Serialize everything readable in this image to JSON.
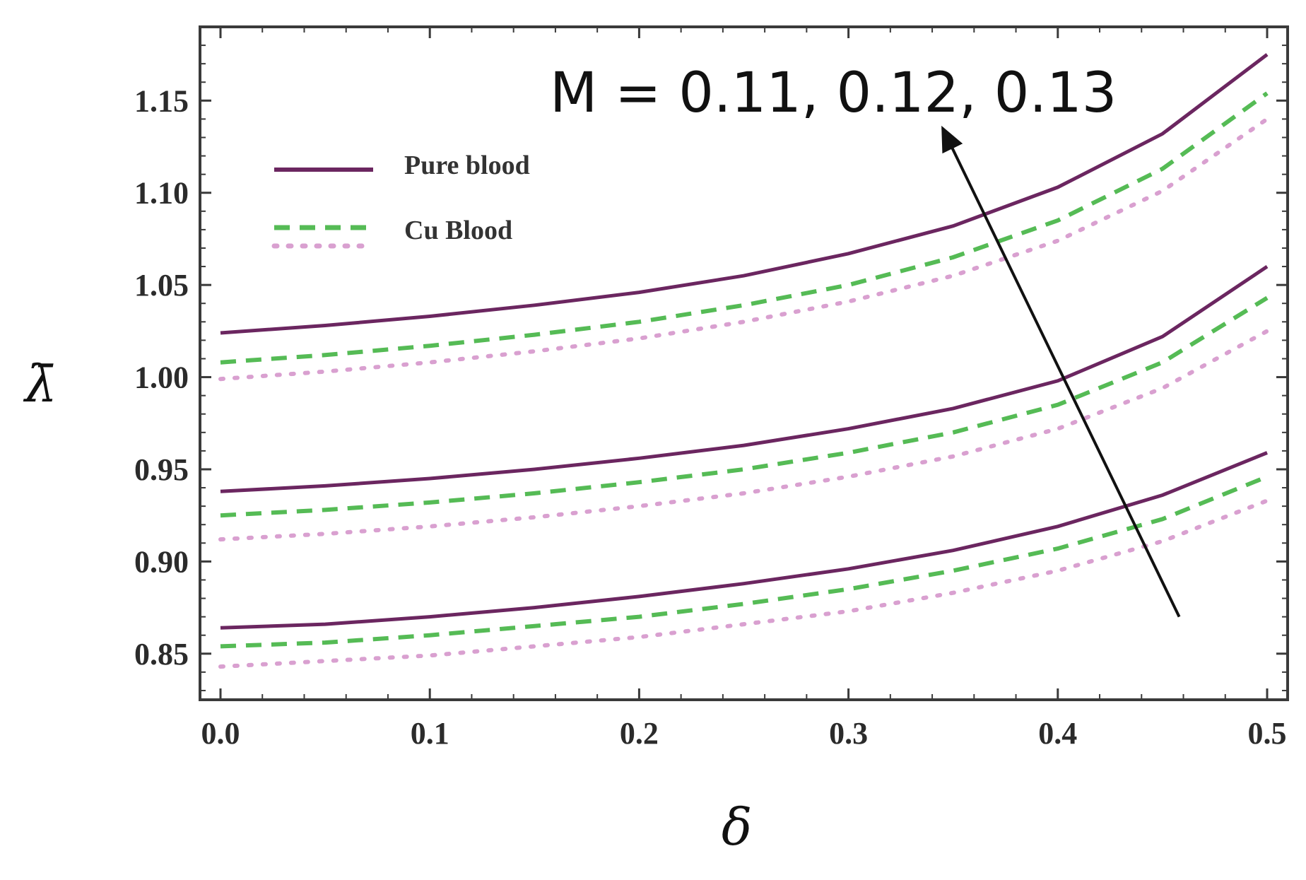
{
  "chart_data": {
    "type": "line",
    "xlabel": "δ",
    "ylabel": "λ̄",
    "xlim": [
      0.0,
      0.5
    ],
    "ylim": [
      0.825,
      1.19
    ],
    "x_ticks": [
      "0.0",
      "0.1",
      "0.2",
      "0.3",
      "0.4",
      "0.5"
    ],
    "y_ticks": [
      "0.85",
      "0.90",
      "0.95",
      "1.00",
      "1.05",
      "1.10",
      "1.15"
    ],
    "grid": false,
    "legend_position": "top-left",
    "legend": [
      {
        "label": "Pure blood",
        "style": "solid",
        "color": "#6b2660"
      },
      {
        "label": "Cu Blood",
        "style": "dashed",
        "color": "#55bb55"
      },
      {
        "label": "",
        "style": "dotted",
        "color": "#d9a0d0"
      }
    ],
    "annotation": "M = 0.11, 0.12, 0.13",
    "arrow": {
      "from": [
        0.458,
        0.87
      ],
      "to": [
        0.345,
        1.135
      ]
    },
    "x": [
      0.0,
      0.05,
      0.1,
      0.15,
      0.2,
      0.25,
      0.3,
      0.35,
      0.4,
      0.45,
      0.5
    ],
    "series": [
      {
        "group": "M = 0.11",
        "style": "solid",
        "color": "#6b2660",
        "values": [
          0.864,
          0.866,
          0.87,
          0.875,
          0.881,
          0.888,
          0.896,
          0.906,
          0.919,
          0.936,
          0.959
        ]
      },
      {
        "group": "M = 0.11",
        "style": "dashed",
        "color": "#55bb55",
        "values": [
          0.854,
          0.856,
          0.86,
          0.865,
          0.87,
          0.877,
          0.885,
          0.895,
          0.907,
          0.923,
          0.946
        ]
      },
      {
        "group": "M = 0.11",
        "style": "dotted",
        "color": "#d9a0d0",
        "values": [
          0.843,
          0.846,
          0.849,
          0.854,
          0.859,
          0.866,
          0.873,
          0.883,
          0.895,
          0.911,
          0.933
        ]
      },
      {
        "group": "M = 0.12",
        "style": "solid",
        "color": "#6b2660",
        "values": [
          0.938,
          0.941,
          0.945,
          0.95,
          0.956,
          0.963,
          0.972,
          0.983,
          0.998,
          1.022,
          1.06
        ]
      },
      {
        "group": "M = 0.12",
        "style": "dashed",
        "color": "#55bb55",
        "values": [
          0.925,
          0.928,
          0.932,
          0.937,
          0.943,
          0.95,
          0.959,
          0.97,
          0.985,
          1.008,
          1.043
        ]
      },
      {
        "group": "M = 0.12",
        "style": "dotted",
        "color": "#d9a0d0",
        "values": [
          0.912,
          0.915,
          0.919,
          0.924,
          0.93,
          0.937,
          0.946,
          0.957,
          0.972,
          0.994,
          1.025
        ]
      },
      {
        "group": "M = 0.13",
        "style": "solid",
        "color": "#6b2660",
        "values": [
          1.024,
          1.028,
          1.033,
          1.039,
          1.046,
          1.055,
          1.067,
          1.082,
          1.103,
          1.132,
          1.175
        ]
      },
      {
        "group": "M = 0.13",
        "style": "dashed",
        "color": "#55bb55",
        "values": [
          1.008,
          1.012,
          1.017,
          1.023,
          1.03,
          1.039,
          1.05,
          1.065,
          1.085,
          1.113,
          1.154
        ]
      },
      {
        "group": "M = 0.13",
        "style": "dotted",
        "color": "#d9a0d0",
        "values": [
          0.999,
          1.003,
          1.008,
          1.014,
          1.021,
          1.03,
          1.041,
          1.055,
          1.074,
          1.101,
          1.14
        ]
      }
    ]
  }
}
